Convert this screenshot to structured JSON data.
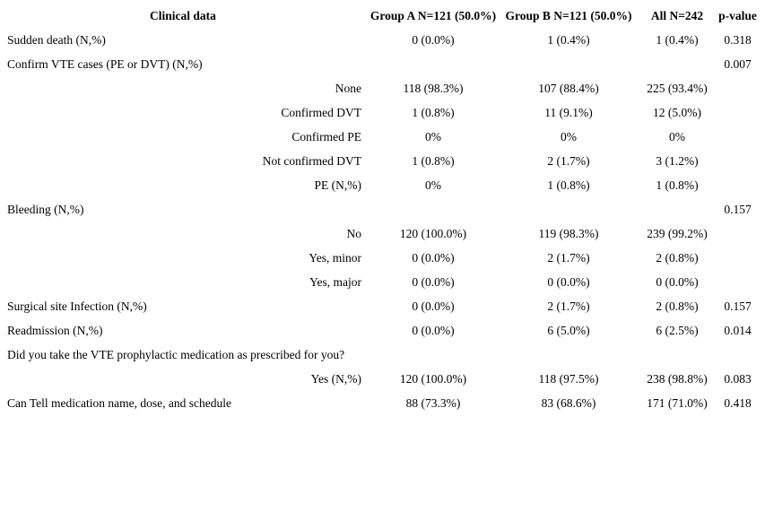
{
  "table": {
    "headers": [
      "Clinical data",
      "Group A N=121 (50.0%)",
      "Group B N=121 (50.0%)",
      "All N=242",
      "p-value"
    ],
    "rows": [
      {
        "label": "Sudden death (N,%)",
        "indent": false,
        "group_a": "0 (0.0%)",
        "group_b": "1 (0.4%)",
        "all": "1 (0.4%)",
        "p_value": "0.318"
      },
      {
        "label": "Confirm VTE cases (PE or DVT) (N,%)",
        "indent": false,
        "group_a": "",
        "group_b": "",
        "all": "",
        "p_value": "0.007"
      },
      {
        "label": "None",
        "indent": true,
        "group_a": "118 (98.3%)",
        "group_b": "107 (88.4%)",
        "all": "225 (93.4%)",
        "p_value": ""
      },
      {
        "label": "Confirmed DVT",
        "indent": true,
        "group_a": "1 (0.8%)",
        "group_b": "11 (9.1%)",
        "all": "12 (5.0%)",
        "p_value": ""
      },
      {
        "label": "Confirmed PE",
        "indent": true,
        "group_a": "0%",
        "group_b": "0%",
        "all": "0%",
        "p_value": ""
      },
      {
        "label": "Not confirmed DVT",
        "indent": true,
        "group_a": "1 (0.8%)",
        "group_b": "2 (1.7%)",
        "all": "3 (1.2%)",
        "p_value": ""
      },
      {
        "label": "PE (N,%)",
        "indent": true,
        "group_a": "0%",
        "group_b": "1 (0.8%)",
        "all": "1 (0.8%)",
        "p_value": ""
      },
      {
        "label": "Bleeding (N,%)",
        "indent": false,
        "group_a": "",
        "group_b": "",
        "all": "",
        "p_value": "0.157"
      },
      {
        "label": "No",
        "indent": true,
        "group_a": "120 (100.0%)",
        "group_b": "119 (98.3%)",
        "all": "239 (99.2%)",
        "p_value": ""
      },
      {
        "label": "Yes, minor",
        "indent": true,
        "group_a": "0 (0.0%)",
        "group_b": "2 (1.7%)",
        "all": "2 (0.8%)",
        "p_value": ""
      },
      {
        "label": "Yes, major",
        "indent": true,
        "group_a": "0 (0.0%)",
        "group_b": "0 (0.0%)",
        "all": "0 (0.0%)",
        "p_value": ""
      },
      {
        "label": "Surgical site Infection (N,%)",
        "indent": false,
        "group_a": "0 (0.0%)",
        "group_b": "2 (1.7%)",
        "all": "2 (0.8%)",
        "p_value": "0.157"
      },
      {
        "label": "Readmission (N,%)",
        "indent": false,
        "group_a": "0 (0.0%)",
        "group_b": "6 (5.0%)",
        "all": "6 (2.5%)",
        "p_value": "0.014"
      },
      {
        "label": "Did you take the VTE prophylactic medication as prescribed for you?",
        "indent": false,
        "group_a": "",
        "group_b": "",
        "all": "",
        "p_value": ""
      },
      {
        "label": "Yes (N,%)",
        "indent": true,
        "group_a": "120 (100.0%)",
        "group_b": "118 (97.5%)",
        "all": "238 (98.8%)",
        "p_value": "0.083"
      },
      {
        "label": "Can Tell medication name, dose, and schedule",
        "indent": false,
        "group_a": "88 (73.3%)",
        "group_b": "83 (68.6%)",
        "all": "171 (71.0%)",
        "p_value": "0.418"
      }
    ]
  },
  "colors": {
    "text": "#000000",
    "background": "#ffffff"
  }
}
